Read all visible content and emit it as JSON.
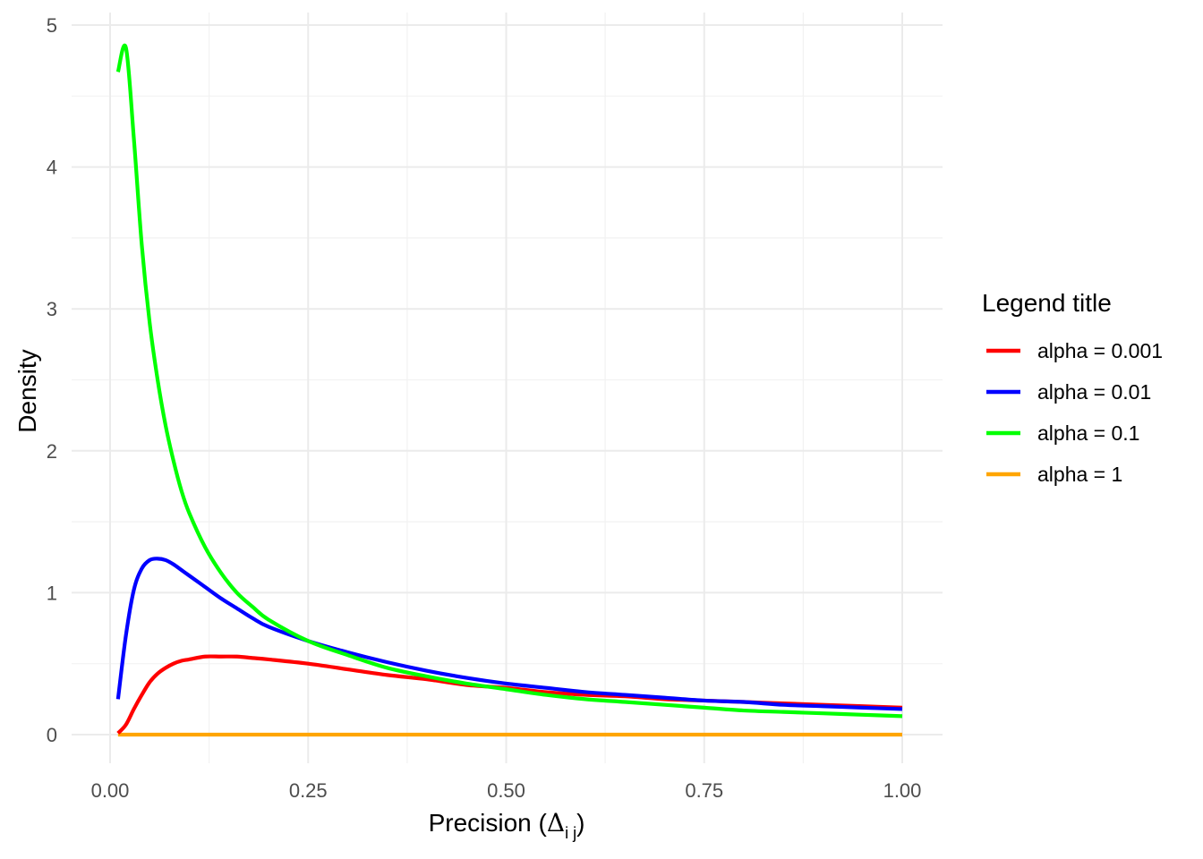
{
  "chart_data": {
    "type": "line",
    "xlabel": "Precision (",
    "xlabel_symbol": "Δ",
    "xlabel_subscript": "i j",
    "xlabel_close": ")",
    "ylabel": "Density",
    "xlim": [
      0.0,
      1.0
    ],
    "ylim": [
      0,
      5
    ],
    "x_ticks": [
      "0.00",
      "0.25",
      "0.50",
      "0.75",
      "1.00"
    ],
    "y_ticks": [
      "0",
      "1",
      "2",
      "3",
      "4",
      "5"
    ],
    "grid": true,
    "legend": {
      "title": "Legend title",
      "position": "right"
    },
    "series": [
      {
        "name": "alpha = 0.001",
        "color": "#ff0000",
        "x": [
          0.01,
          0.02,
          0.03,
          0.04,
          0.05,
          0.06,
          0.07,
          0.08,
          0.09,
          0.1,
          0.12,
          0.14,
          0.16,
          0.18,
          0.2,
          0.25,
          0.3,
          0.35,
          0.4,
          0.45,
          0.5,
          0.55,
          0.6,
          0.65,
          0.7,
          0.75,
          0.8,
          0.85,
          0.9,
          0.95,
          1.0
        ],
        "y": [
          0.01,
          0.07,
          0.18,
          0.28,
          0.37,
          0.43,
          0.47,
          0.5,
          0.52,
          0.53,
          0.55,
          0.55,
          0.55,
          0.54,
          0.53,
          0.5,
          0.46,
          0.42,
          0.39,
          0.35,
          0.33,
          0.3,
          0.28,
          0.27,
          0.25,
          0.24,
          0.23,
          0.22,
          0.21,
          0.2,
          0.19
        ]
      },
      {
        "name": "alpha = 0.01",
        "color": "#0000ff",
        "x": [
          0.01,
          0.02,
          0.03,
          0.04,
          0.05,
          0.06,
          0.07,
          0.08,
          0.09,
          0.1,
          0.12,
          0.14,
          0.16,
          0.18,
          0.2,
          0.25,
          0.3,
          0.35,
          0.4,
          0.45,
          0.5,
          0.55,
          0.6,
          0.65,
          0.7,
          0.75,
          0.8,
          0.85,
          0.9,
          0.95,
          1.0
        ],
        "y": [
          0.25,
          0.7,
          1.02,
          1.17,
          1.23,
          1.24,
          1.23,
          1.2,
          1.16,
          1.12,
          1.04,
          0.96,
          0.89,
          0.82,
          0.76,
          0.66,
          0.58,
          0.51,
          0.45,
          0.4,
          0.36,
          0.33,
          0.3,
          0.28,
          0.26,
          0.24,
          0.23,
          0.21,
          0.2,
          0.19,
          0.18
        ]
      },
      {
        "name": "alpha = 0.1",
        "color": "#00ff00",
        "x": [
          0.01,
          0.02,
          0.03,
          0.04,
          0.05,
          0.06,
          0.07,
          0.08,
          0.09,
          0.1,
          0.12,
          0.14,
          0.16,
          0.18,
          0.2,
          0.25,
          0.3,
          0.35,
          0.4,
          0.45,
          0.5,
          0.55,
          0.6,
          0.65,
          0.7,
          0.75,
          0.8,
          0.85,
          0.9,
          0.95,
          1.0
        ],
        "y": [
          4.67,
          4.84,
          4.2,
          3.45,
          2.9,
          2.5,
          2.18,
          1.93,
          1.72,
          1.56,
          1.32,
          1.14,
          1.0,
          0.9,
          0.81,
          0.66,
          0.56,
          0.47,
          0.41,
          0.36,
          0.32,
          0.28,
          0.25,
          0.23,
          0.21,
          0.19,
          0.17,
          0.16,
          0.15,
          0.14,
          0.13
        ]
      },
      {
        "name": "alpha = 1",
        "color": "#ffa500",
        "x": [
          0.01,
          0.1,
          0.25,
          0.5,
          0.75,
          1.0
        ],
        "y": [
          0,
          0,
          0,
          0,
          0,
          0
        ]
      }
    ]
  }
}
